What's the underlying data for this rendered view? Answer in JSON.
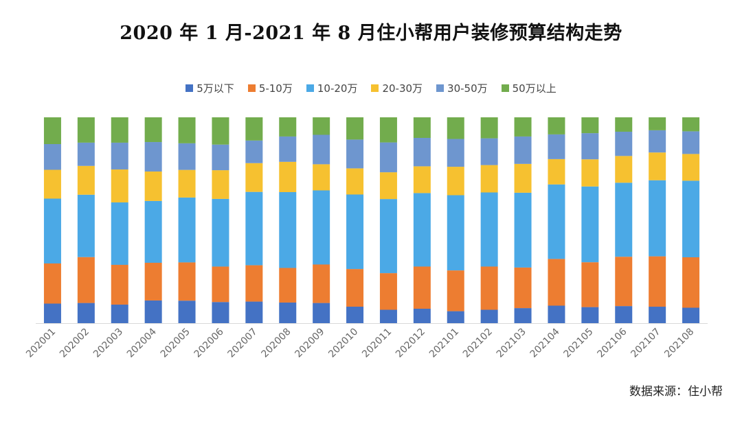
{
  "chart_data": {
    "type": "bar",
    "stacked": "percent",
    "title": "2020 年 1 月-2021 年 8 月住小帮用户装修预算结构走势",
    "xlabel": "",
    "ylabel": "",
    "ylim": [
      0,
      100
    ],
    "categories": [
      "202001",
      "202002",
      "202003",
      "202004",
      "202005",
      "202006",
      "202007",
      "202008",
      "202009",
      "202010",
      "202011",
      "202012",
      "202101",
      "202102",
      "202103",
      "202104",
      "202105",
      "202106",
      "202107",
      "202108"
    ],
    "series": [
      {
        "name": "5万以下",
        "color": "#4472C4",
        "values": [
          9.5,
          9.8,
          9.0,
          11.0,
          11.0,
          10.3,
          10.5,
          10.0,
          9.8,
          8.0,
          6.5,
          7.0,
          5.8,
          6.5,
          7.3,
          8.5,
          7.8,
          8.3,
          8.0,
          7.5
        ]
      },
      {
        "name": "5-10万",
        "color": "#ED7D31",
        "values": [
          19.5,
          22.3,
          19.3,
          18.3,
          18.7,
          17.3,
          17.7,
          16.8,
          18.7,
          18.3,
          17.8,
          20.5,
          19.8,
          21.0,
          19.7,
          22.7,
          21.8,
          24.0,
          24.5,
          24.5
        ]
      },
      {
        "name": "10-20万",
        "color": "#4BA9E6",
        "values": [
          31.5,
          30.3,
          30.3,
          30.0,
          31.7,
          33.0,
          35.7,
          36.8,
          36.0,
          36.2,
          36.0,
          35.7,
          36.5,
          36.0,
          36.3,
          36.2,
          36.8,
          36.0,
          37.0,
          37.2
        ]
      },
      {
        "name": "20-30万",
        "color": "#F6C130",
        "values": [
          14.0,
          14.0,
          16.0,
          14.3,
          13.5,
          14.0,
          14.0,
          14.7,
          12.7,
          12.7,
          13.0,
          13.0,
          13.8,
          13.3,
          14.0,
          12.3,
          13.2,
          13.0,
          13.5,
          13.0
        ]
      },
      {
        "name": "30-50万",
        "color": "#6E96CF",
        "values": [
          12.5,
          11.3,
          13.0,
          14.3,
          13.0,
          12.5,
          11.0,
          12.3,
          14.3,
          14.0,
          14.5,
          13.8,
          13.5,
          13.0,
          13.3,
          12.0,
          12.7,
          11.8,
          10.8,
          11.0
        ]
      },
      {
        "name": "50万以上",
        "color": "#72AC4D",
        "values": [
          13.0,
          12.3,
          12.3,
          12.0,
          12.7,
          13.3,
          11.3,
          9.3,
          8.5,
          10.8,
          12.2,
          10.0,
          10.5,
          10.2,
          9.3,
          8.3,
          7.7,
          7.0,
          6.3,
          6.8
        ]
      }
    ]
  },
  "source_label": "数据来源：住小帮"
}
